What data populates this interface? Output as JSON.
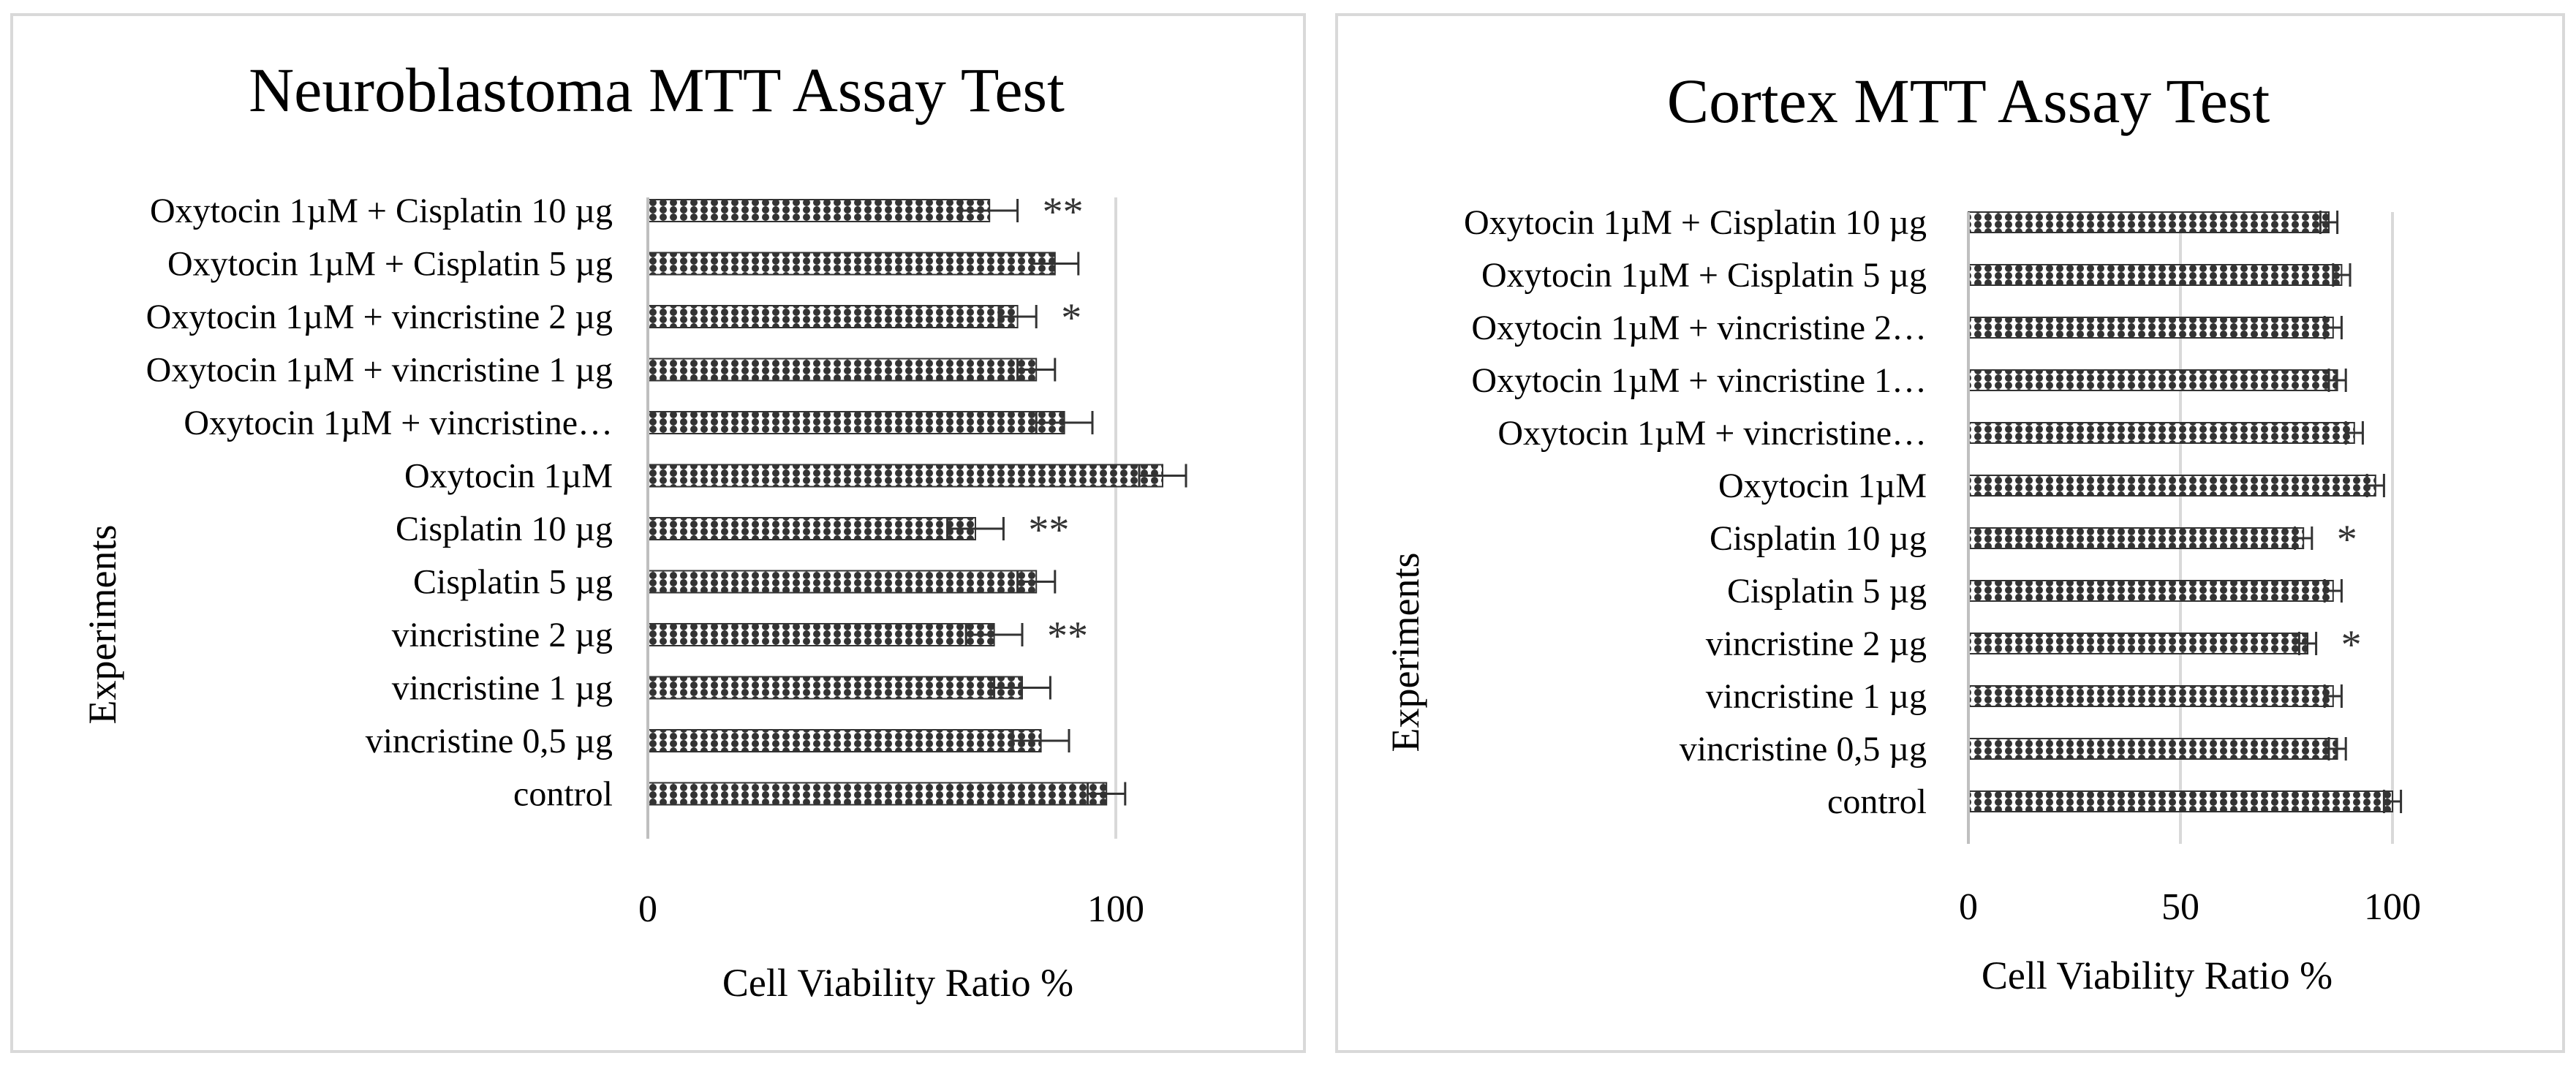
{
  "chart_data": [
    {
      "type": "bar",
      "orientation": "horizontal",
      "title": "Neuroblastoma MTT Assay Test",
      "xlabel": "Cell Viability Ratio %",
      "ylabel": "Experiments",
      "xlim": [
        0,
        120
      ],
      "xticks": [
        "0",
        "100"
      ],
      "grid": true,
      "categories": [
        "control",
        "vincristine 0,5 µg",
        "vincristine 1 µg",
        "vincristine 2 µg",
        "Cisplatin 5 µg",
        "Cisplatin 10  µg",
        "Oxytocin 1µM",
        "Oxytocin 1µM + vincristine…",
        "Oxytocin 1µM + vincristine 1 µg",
        "Oxytocin 1µM + vincristine 2 µg",
        "Oxytocin 1µM + Cisplatin 5 µg",
        "Oxytocin 1µM + Cisplatin 10 µg"
      ],
      "values": [
        98,
        84,
        80,
        74,
        83,
        70,
        110,
        89,
        83,
        79,
        87,
        73
      ],
      "errors": [
        4,
        6,
        6,
        6,
        4,
        6,
        5,
        6,
        4,
        4,
        5,
        6
      ],
      "significance": [
        "",
        "",
        "",
        "**",
        "",
        "**",
        "",
        "",
        "",
        "*",
        "",
        "**"
      ],
      "bar_color": "#333333"
    },
    {
      "type": "bar",
      "orientation": "horizontal",
      "title": "Cortex MTT Assay Test",
      "xlabel": "Cell Viability Ratio %",
      "ylabel": "Experiments",
      "xlim": [
        0,
        100
      ],
      "xticks": [
        "0",
        "50",
        "100"
      ],
      "grid": true,
      "categories": [
        "control",
        "vincristine 0,5 µg",
        "vincristine 1 µg",
        "vincristine 2 µg",
        "Cisplatin 5 µg",
        "Cisplatin 10  µg",
        "Oxytocin 1µM",
        "Oxytocin 1µM + vincristine…",
        "Oxytocin 1µM + vincristine 1…",
        "Oxytocin 1µM + vincristine 2…",
        "Oxytocin 1µM + Cisplatin 5 µg",
        "Oxytocin 1µM + Cisplatin 10 µg"
      ],
      "values": [
        100,
        87,
        86,
        80,
        86,
        79,
        96,
        91,
        87,
        86,
        88,
        85
      ],
      "errors": [
        2,
        2,
        2,
        2,
        2,
        2,
        2,
        2,
        2,
        2,
        2,
        2
      ],
      "significance": [
        "",
        "",
        "",
        "*",
        "",
        "*",
        "",
        "",
        "",
        "",
        "",
        ""
      ],
      "bar_color": "#333333"
    }
  ]
}
